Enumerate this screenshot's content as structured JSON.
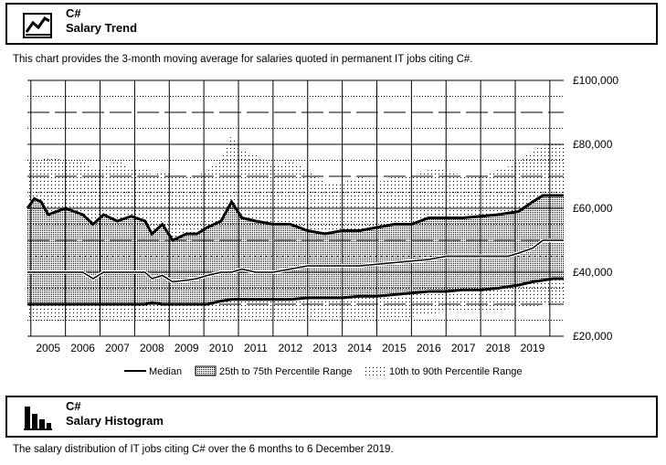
{
  "trend_section": {
    "language": "C#",
    "title": "Salary Trend",
    "description": "This chart provides the 3-month moving average for salaries quoted in permanent IT jobs citing C#.",
    "icon": "line-chart-icon"
  },
  "histogram_section": {
    "language": "C#",
    "title": "Salary Histogram",
    "description": "The salary distribution of IT jobs citing C# over the 6 months to 6 December 2019.",
    "icon": "bar-chart-icon"
  },
  "chart_data": {
    "type": "area",
    "x_tick_labels": [
      "2005",
      "2006",
      "2007",
      "2008",
      "2009",
      "2010",
      "2011",
      "2012",
      "2013",
      "2014",
      "2015",
      "2016",
      "2017",
      "2018",
      "2019"
    ],
    "y_tick_labels": [
      "£100,000",
      "£80,000",
      "£60,000",
      "£40,000",
      "£20,000"
    ],
    "ylim": [
      20000,
      100000
    ],
    "xlim": [
      2004.4,
      2019.9
    ],
    "grid": true,
    "legend_position": "bottom",
    "legend": {
      "median": "Median",
      "p25_75": "25th to 75th Percentile Range",
      "p10_90": "10th to 90th Percentile Range"
    },
    "x": [
      2004.4,
      2004.6,
      2004.8,
      2005.0,
      2005.5,
      2006.0,
      2006.3,
      2006.6,
      2007.0,
      2007.4,
      2007.8,
      2008.0,
      2008.3,
      2008.6,
      2009.0,
      2009.3,
      2009.6,
      2010.0,
      2010.3,
      2010.6,
      2011.0,
      2011.5,
      2012.0,
      2012.5,
      2013.0,
      2013.5,
      2014.0,
      2014.5,
      2015.0,
      2015.5,
      2016.0,
      2016.5,
      2017.0,
      2017.5,
      2018.0,
      2018.3,
      2018.6,
      2019.0,
      2019.3,
      2019.6,
      2019.9
    ],
    "series": [
      {
        "name": "Median",
        "values": [
          40000,
          40000,
          40000,
          40000,
          40000,
          40000,
          38000,
          40000,
          40000,
          40000,
          40000,
          38000,
          39000,
          37000,
          37500,
          38000,
          39000,
          40000,
          40000,
          41000,
          40000,
          40000,
          41000,
          42000,
          42000,
          42000,
          42000,
          42500,
          43000,
          43500,
          44000,
          45000,
          45000,
          45000,
          45000,
          45000,
          46000,
          47500,
          50000,
          50000,
          50000
        ]
      },
      {
        "name": "25th Percentile",
        "values": [
          30000,
          30000,
          30000,
          30000,
          30000,
          30000,
          30000,
          30000,
          30000,
          30000,
          30000,
          30500,
          30000,
          30000,
          30000,
          30000,
          30000,
          31000,
          31500,
          31500,
          31500,
          31500,
          31500,
          32000,
          32000,
          32000,
          32500,
          32500,
          33000,
          33500,
          34000,
          34000,
          34500,
          34500,
          35000,
          35500,
          36000,
          37000,
          37500,
          38000,
          38000
        ]
      },
      {
        "name": "75th Percentile",
        "values": [
          60000,
          63000,
          62000,
          58000,
          60000,
          58000,
          55000,
          58000,
          56000,
          57500,
          56000,
          52000,
          55000,
          50000,
          52000,
          52000,
          54000,
          56000,
          62000,
          57000,
          56000,
          55000,
          55000,
          53000,
          52000,
          53000,
          53000,
          54000,
          55000,
          55000,
          57000,
          57000,
          57000,
          57500,
          58000,
          58500,
          59000,
          62000,
          64000,
          64000,
          64000
        ]
      },
      {
        "name": "10th Percentile",
        "values": [
          25000,
          25000,
          25000,
          25000,
          25000,
          25000,
          24500,
          25000,
          25000,
          25000,
          25000,
          24500,
          24000,
          25000,
          25000,
          25000,
          25000,
          25000,
          25000,
          25000,
          25000,
          25000,
          25000,
          25000,
          25000,
          25000,
          25000,
          26000,
          26000,
          26000,
          27000,
          27500,
          27500,
          28000,
          28000,
          28500,
          29000,
          29000,
          30000,
          30000,
          30000
        ]
      },
      {
        "name": "90th Percentile",
        "values": [
          75000,
          75000,
          75000,
          76000,
          75000,
          75000,
          72000,
          73000,
          75000,
          72000,
          73000,
          70000,
          72000,
          70000,
          70000,
          70000,
          72000,
          75000,
          83000,
          78000,
          77000,
          73000,
          75000,
          72000,
          68000,
          68000,
          70000,
          68000,
          70000,
          70000,
          72000,
          72000,
          70000,
          70000,
          72000,
          73000,
          75000,
          78000,
          80000,
          80000,
          80000
        ]
      }
    ]
  }
}
